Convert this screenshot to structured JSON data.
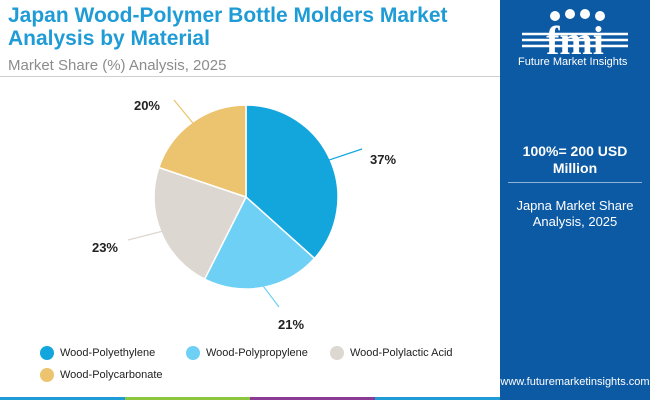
{
  "header": {
    "title": "Japan Wood-Polymer Bottle Molders Market Analysis by Material",
    "subtitle": "Market Share (%) Analysis, 2025"
  },
  "chart_data": {
    "type": "pie",
    "title": "Japan Wood-Polymer Bottle Molders Market Analysis by Material",
    "subtitle": "Market Share (%) Analysis, 2025",
    "start_angle_deg": 0,
    "direction": "clockwise",
    "legend_position": "bottom",
    "slices": [
      {
        "label": "Wood-Polyethylene",
        "value": 37,
        "display": "37%",
        "color": "#12a6dd"
      },
      {
        "label": "Wood-Polypropylene",
        "value": 21,
        "display": "21%",
        "color": "#6fd0f6"
      },
      {
        "label": "Wood-Polylactic Acid",
        "value": 23,
        "display": "23%",
        "color": "#ddd7d1"
      },
      {
        "label": "Wood-Polycarbonate",
        "value": 20,
        "display": "20%",
        "color": "#ecc36e"
      }
    ]
  },
  "sidebar": {
    "logo_letters": "fmi",
    "logo_text": "Future Market Insights",
    "total": "100%= 200 USD Million",
    "note": "Japna Market Share Analysis, 2025",
    "url": "www.futuremarketinsights.com"
  },
  "colors": {
    "title": "#1f9bd6",
    "sidebar_bg": "#0d5aa4",
    "bottom_bar": [
      "#1f9bd6",
      "#8cc63f",
      "#8b3a96",
      "#1f9bd6"
    ]
  }
}
